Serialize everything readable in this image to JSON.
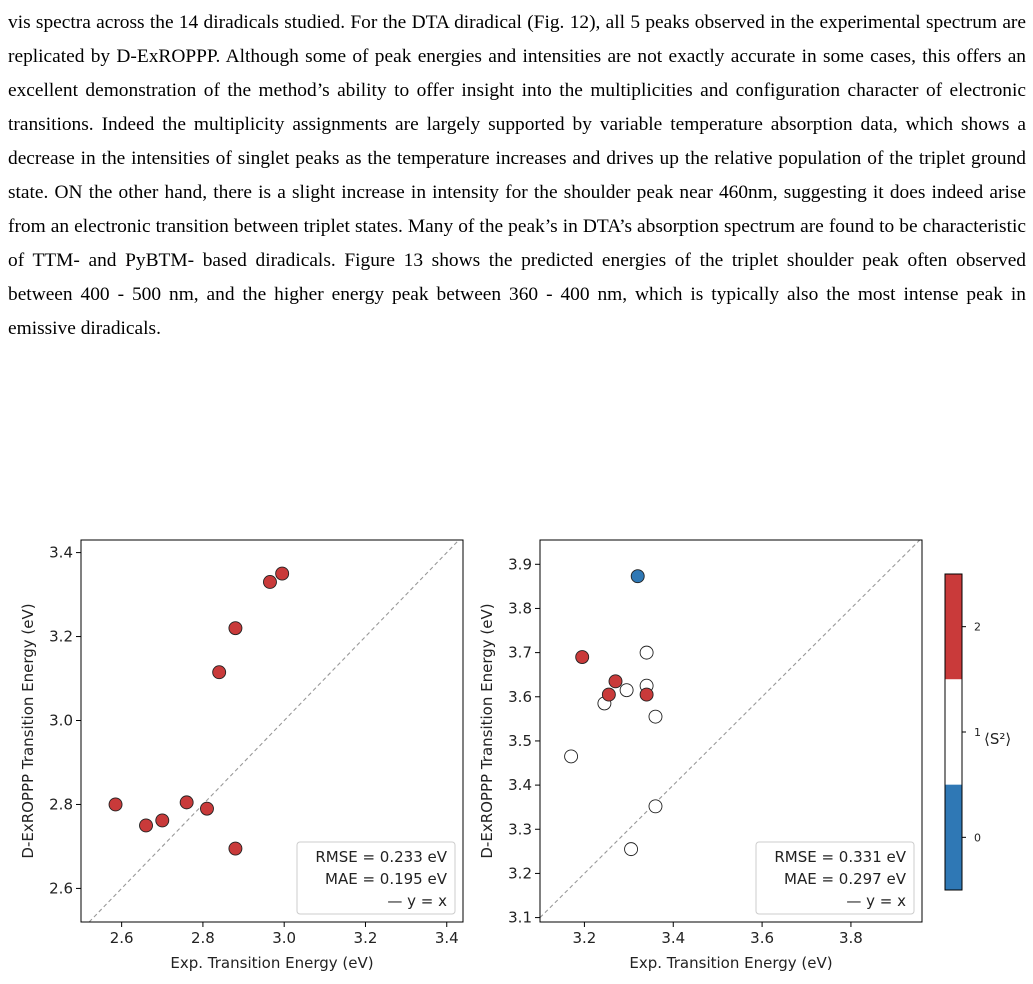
{
  "paragraph": "vis spectra across the 14 diradicals studied. For the DTA diradical (Fig. 12), all 5 peaks observed in the experimental spectrum are replicated by D-ExROPPP. Although some of peak energies and intensities are not exactly accurate in some cases, this offers an excellent demonstration of the method’s ability to offer insight into the multiplicities and configuration character of electronic transitions. Indeed the multiplicity assignments are largely supported by variable temperature absorption data, which shows a decrease in the intensities of singlet peaks as the temperature increases and drives up the relative population of the triplet ground state. ON the other hand, there is a slight increase in intensity for the shoulder peak near 460nm, suggesting it does indeed arise from an electronic transition between triplet states. Many of the peak’s in DTA’s absorption spectrum are found to be characteristic of TTM- and PyBTM- based diradicals. Figure 13 shows the predicted energies of the triplet shoulder peak often observed between 400 - 500 nm, and the higher energy peak between 360 - 400 nm, which is typically also the most intense peak in emissive diradicals.",
  "colors": {
    "triplet": "#c93a3a",
    "singlet": "#ffffff",
    "three": "#2f78b5",
    "diag": "#999999"
  },
  "colorbar": {
    "label": "⟨S²⟩",
    "ticks": [
      "0",
      "1",
      "2"
    ]
  },
  "chart_data": [
    {
      "type": "scatter",
      "xlabel": "Exp. Transition Energy (eV)",
      "ylabel": "D-ExROPPP Transition Energy (eV)",
      "xlim": [
        2.5,
        3.44
      ],
      "ylim": [
        2.52,
        3.43
      ],
      "xticks": [
        "2.6",
        "2.8",
        "3.0",
        "3.2",
        "3.4"
      ],
      "yticks": [
        "2.6",
        "2.8",
        "3.0",
        "3.2",
        "3.4"
      ],
      "points": [
        {
          "x": 2.585,
          "y": 2.8,
          "s2": 2
        },
        {
          "x": 2.66,
          "y": 2.75,
          "s2": 2
        },
        {
          "x": 2.7,
          "y": 2.762,
          "s2": 2
        },
        {
          "x": 2.76,
          "y": 2.805,
          "s2": 2
        },
        {
          "x": 2.81,
          "y": 2.79,
          "s2": 2
        },
        {
          "x": 2.84,
          "y": 3.115,
          "s2": 2
        },
        {
          "x": 2.88,
          "y": 3.22,
          "s2": 2
        },
        {
          "x": 2.88,
          "y": 2.695,
          "s2": 2
        },
        {
          "x": 2.965,
          "y": 3.33,
          "s2": 2
        },
        {
          "x": 2.995,
          "y": 3.35,
          "s2": 2
        }
      ],
      "stats": [
        "RMSE = 0.233 eV",
        "MAE  = 0.195 eV",
        "— y = x"
      ]
    },
    {
      "type": "scatter",
      "xlabel": "Exp. Transition Energy (eV)",
      "ylabel": "D-ExROPPP Transition Energy (eV)",
      "xlim": [
        3.1,
        3.96
      ],
      "ylim": [
        3.09,
        3.955
      ],
      "xticks": [
        "3.2",
        "3.4",
        "3.6",
        "3.8"
      ],
      "yticks": [
        "3.1",
        "3.2",
        "3.3",
        "3.4",
        "3.5",
        "3.6",
        "3.7",
        "3.8",
        "3.9"
      ],
      "points": [
        {
          "x": 3.17,
          "y": 3.465,
          "s2": 1
        },
        {
          "x": 3.195,
          "y": 3.69,
          "s2": 2
        },
        {
          "x": 3.245,
          "y": 3.585,
          "s2": 1
        },
        {
          "x": 3.255,
          "y": 3.605,
          "s2": 2
        },
        {
          "x": 3.27,
          "y": 3.635,
          "s2": 2
        },
        {
          "x": 3.295,
          "y": 3.615,
          "s2": 1
        },
        {
          "x": 3.305,
          "y": 3.255,
          "s2": 1
        },
        {
          "x": 3.32,
          "y": 3.873,
          "s2": 0
        },
        {
          "x": 3.34,
          "y": 3.7,
          "s2": 1
        },
        {
          "x": 3.34,
          "y": 3.625,
          "s2": 1
        },
        {
          "x": 3.34,
          "y": 3.605,
          "s2": 2
        },
        {
          "x": 3.36,
          "y": 3.555,
          "s2": 1
        },
        {
          "x": 3.36,
          "y": 3.352,
          "s2": 1
        }
      ],
      "stats": [
        "RMSE = 0.331 eV",
        "MAE  = 0.297 eV",
        "— y = x"
      ]
    }
  ]
}
